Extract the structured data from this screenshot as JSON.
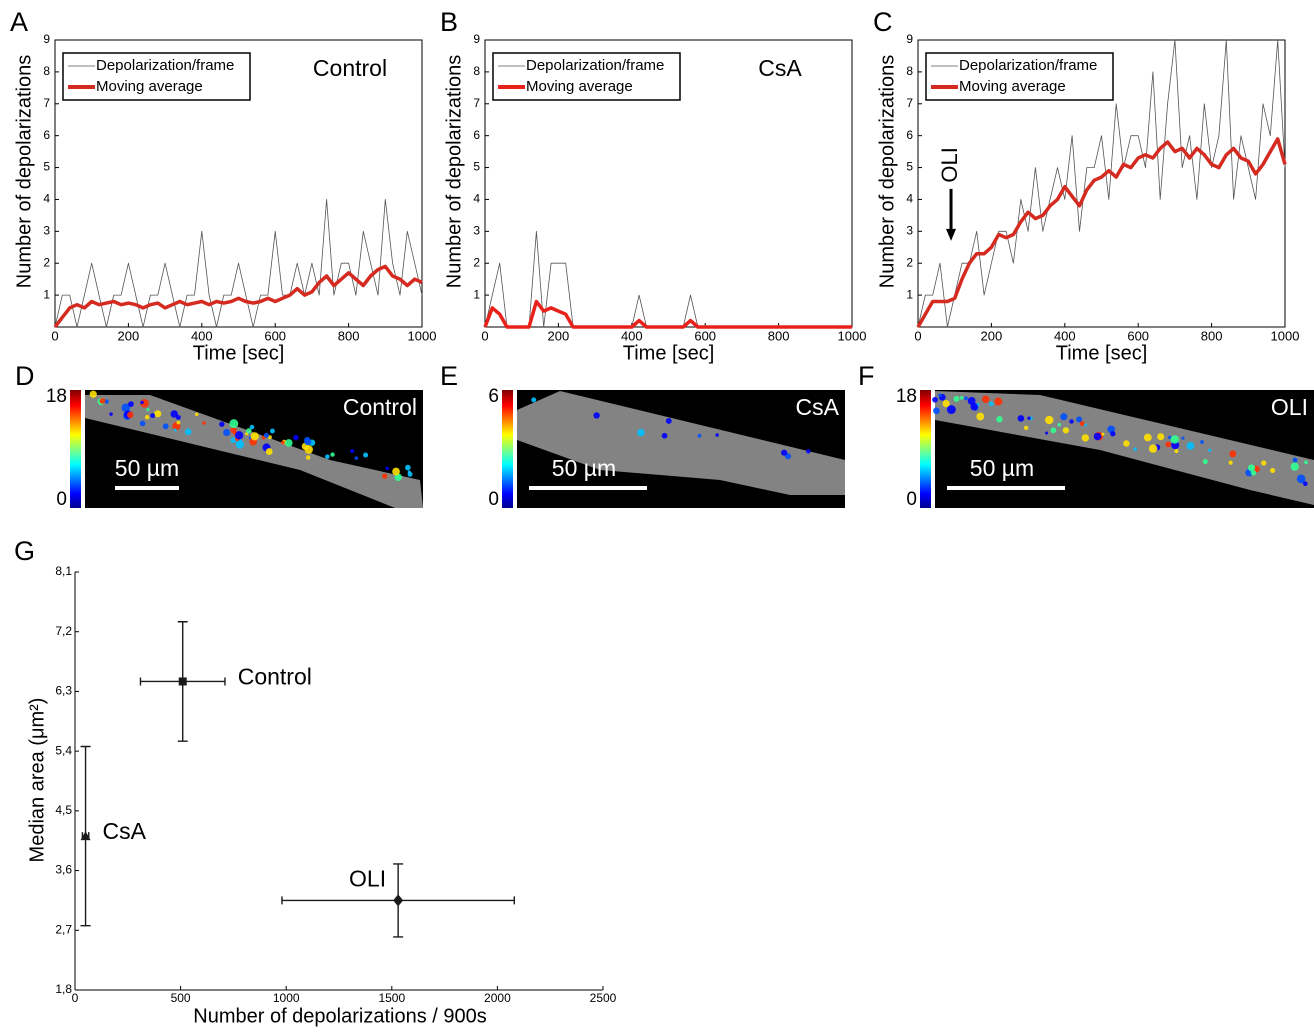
{
  "chart_data": [
    {
      "type": "line",
      "panel": "A",
      "annotation": "Control",
      "xlabel": "Time [sec]",
      "ylabel": "Number of depolarizations",
      "x": [
        0,
        20,
        40,
        60,
        80,
        100,
        120,
        140,
        160,
        180,
        200,
        220,
        240,
        260,
        280,
        300,
        320,
        340,
        360,
        380,
        400,
        420,
        440,
        460,
        480,
        500,
        520,
        540,
        560,
        580,
        600,
        620,
        640,
        660,
        680,
        700,
        720,
        740,
        760,
        780,
        800,
        820,
        840,
        860,
        880,
        900,
        920,
        940,
        960,
        980,
        1000
      ],
      "series": [
        {
          "name": "Depolarization/frame",
          "color": "#555555",
          "values": [
            0,
            1,
            1,
            0,
            1,
            2,
            1,
            0,
            1,
            1,
            2,
            1,
            0,
            1,
            1,
            2,
            1,
            0,
            1,
            1,
            3,
            1,
            0,
            1,
            1,
            2,
            1,
            0,
            1,
            1,
            3,
            1,
            1,
            2,
            1,
            2,
            1,
            4,
            1,
            2,
            2,
            1,
            3,
            2,
            1,
            4,
            2,
            1,
            3,
            2,
            1
          ]
        },
        {
          "name": "Moving average",
          "color": "#d42a20",
          "values": [
            0,
            0.3,
            0.6,
            0.7,
            0.6,
            0.8,
            0.7,
            0.75,
            0.8,
            0.7,
            0.75,
            0.7,
            0.6,
            0.7,
            0.75,
            0.6,
            0.7,
            0.8,
            0.7,
            0.75,
            0.8,
            0.7,
            0.8,
            0.75,
            0.8,
            0.9,
            0.8,
            0.75,
            0.8,
            0.9,
            0.8,
            0.9,
            1.0,
            1.2,
            1.0,
            1.1,
            1.4,
            1.6,
            1.3,
            1.5,
            1.7,
            1.5,
            1.3,
            1.6,
            1.8,
            1.9,
            1.6,
            1.5,
            1.3,
            1.5,
            1.4
          ]
        }
      ],
      "xlim": [
        0,
        1000
      ],
      "xticks": [
        0,
        200,
        400,
        600,
        800,
        1000
      ],
      "ylim": [
        0,
        9
      ],
      "yticks": [
        1,
        2,
        3,
        4,
        5,
        6,
        7,
        8,
        9
      ]
    },
    {
      "type": "line",
      "panel": "B",
      "annotation": "CsA",
      "xlabel": "Time [sec]",
      "ylabel": "Number of depolarizations",
      "x": [
        0,
        20,
        40,
        60,
        80,
        100,
        120,
        140,
        160,
        180,
        200,
        220,
        240,
        260,
        280,
        300,
        320,
        340,
        360,
        380,
        400,
        420,
        440,
        460,
        480,
        500,
        520,
        540,
        560,
        580,
        600,
        620,
        640,
        660,
        680,
        700,
        720,
        740,
        760,
        780,
        800,
        820,
        840,
        860,
        880,
        900,
        920,
        940,
        960,
        980,
        1000
      ],
      "series": [
        {
          "name": "Depolarization/frame",
          "color": "#555555",
          "values": [
            0,
            1,
            2,
            0,
            0,
            0,
            0,
            3,
            0,
            2,
            2,
            2,
            0,
            0,
            0,
            0,
            0,
            0,
            0,
            0,
            0,
            1,
            0,
            0,
            0,
            0,
            0,
            0,
            1,
            0,
            0,
            0,
            0,
            0,
            0,
            0,
            0,
            0,
            0,
            0,
            0,
            0,
            0,
            0,
            0,
            0,
            0,
            0,
            0,
            0,
            0
          ]
        },
        {
          "name": "Moving average",
          "color": "#e8221a",
          "values": [
            0,
            0.6,
            0.4,
            0,
            0,
            0,
            0,
            0.8,
            0.5,
            0.6,
            0.5,
            0.4,
            0,
            0,
            0,
            0,
            0,
            0,
            0,
            0,
            0,
            0.2,
            0,
            0,
            0,
            0,
            0,
            0,
            0.2,
            0,
            0,
            0,
            0,
            0,
            0,
            0,
            0,
            0,
            0,
            0,
            0,
            0,
            0,
            0,
            0,
            0,
            0,
            0,
            0,
            0,
            0
          ]
        }
      ],
      "xlim": [
        0,
        1000
      ],
      "xticks": [
        0,
        200,
        400,
        600,
        800,
        1000
      ],
      "ylim": [
        0,
        9
      ],
      "yticks": [
        1,
        2,
        3,
        4,
        5,
        6,
        7,
        8,
        9
      ]
    },
    {
      "type": "line",
      "panel": "C",
      "xlabel": "Time [sec]",
      "ylabel": "Number of depolarizations",
      "arrow": {
        "text": "OLI",
        "x": 90,
        "y": 2.7
      },
      "x": [
        0,
        20,
        40,
        60,
        80,
        100,
        120,
        140,
        160,
        180,
        200,
        220,
        240,
        260,
        280,
        300,
        320,
        340,
        360,
        380,
        400,
        420,
        440,
        460,
        480,
        500,
        520,
        540,
        560,
        580,
        600,
        620,
        640,
        660,
        680,
        700,
        720,
        740,
        760,
        780,
        800,
        820,
        840,
        860,
        880,
        900,
        920,
        940,
        960,
        980,
        1000
      ],
      "series": [
        {
          "name": "Depolarization/frame",
          "color": "#555555",
          "values": [
            0,
            1,
            1,
            2,
            0,
            1,
            2,
            2,
            3,
            1,
            2,
            3,
            3,
            2,
            4,
            3,
            5,
            3,
            4,
            5,
            4,
            6,
            3,
            5,
            5,
            6,
            4,
            7,
            5,
            6,
            6,
            5,
            8,
            4,
            7,
            9,
            5,
            6,
            4,
            7,
            5,
            6,
            9,
            4,
            6,
            5,
            4,
            7,
            6,
            9,
            5
          ]
        },
        {
          "name": "Moving average",
          "color": "#d42a20",
          "values": [
            0,
            0.4,
            0.8,
            0.8,
            0.8,
            0.9,
            1.5,
            2.0,
            2.3,
            2.3,
            2.5,
            2.9,
            2.8,
            2.9,
            3.3,
            3.6,
            3.4,
            3.5,
            3.8,
            4.0,
            4.4,
            4.1,
            3.8,
            4.3,
            4.6,
            4.7,
            4.9,
            4.7,
            5.1,
            5.0,
            5.3,
            5.4,
            5.3,
            5.6,
            5.8,
            5.5,
            5.6,
            5.3,
            5.6,
            5.4,
            5.1,
            5.0,
            5.4,
            5.6,
            5.3,
            5.2,
            4.8,
            5.1,
            5.5,
            5.9,
            5.1
          ]
        }
      ],
      "xlim": [
        0,
        1000
      ],
      "xticks": [
        0,
        200,
        400,
        600,
        800,
        1000
      ],
      "ylim": [
        0,
        9
      ],
      "yticks": [
        1,
        2,
        3,
        4,
        5,
        6,
        7,
        8,
        9
      ]
    },
    {
      "type": "errorbar",
      "panel": "G",
      "xlabel": "Number of depolarizations / 900s",
      "ylabel": "Median area (μm²)",
      "series": [
        {
          "name": "Control",
          "marker": "square",
          "color": "#1a1a1a",
          "x": 510,
          "y": 6.45,
          "xerr": 200,
          "yerr": 0.9
        },
        {
          "name": "CsA",
          "marker": "triangle",
          "color": "#1a1a1a",
          "x": 50,
          "y": 4.12,
          "xerr": 15,
          "yerr": 1.35
        },
        {
          "name": "OLI",
          "marker": "diamond",
          "color": "#1a1a1a",
          "x": 1530,
          "y": 3.15,
          "xerr": 550,
          "yerr": 0.55
        }
      ],
      "xlim": [
        0,
        2500
      ],
      "xticks": [
        0,
        500,
        1000,
        1500,
        2000,
        2500
      ],
      "ylim": [
        1.8,
        8.1
      ],
      "yticks": [
        {
          "value": 1.8,
          "label": "1,8"
        },
        {
          "value": 2.7,
          "label": "2,7"
        },
        {
          "value": 3.6,
          "label": "3,6"
        },
        {
          "value": 4.5,
          "label": "4,5"
        },
        {
          "value": 5.4,
          "label": "5,4"
        },
        {
          "value": 6.3,
          "label": "6,3"
        },
        {
          "value": 7.2,
          "label": "7,2"
        },
        {
          "value": 8.1,
          "label": "8,1"
        }
      ]
    }
  ],
  "images": [
    {
      "panel": "D",
      "label": "Control",
      "colorbar": [
        0,
        18
      ],
      "scale": "50 µm"
    },
    {
      "panel": "E",
      "label": "CsA",
      "colorbar": [
        0,
        6
      ],
      "scale": "50 µm"
    },
    {
      "panel": "F",
      "label": "OLI",
      "colorbar": [
        0,
        18
      ],
      "scale": "50 µm"
    }
  ]
}
